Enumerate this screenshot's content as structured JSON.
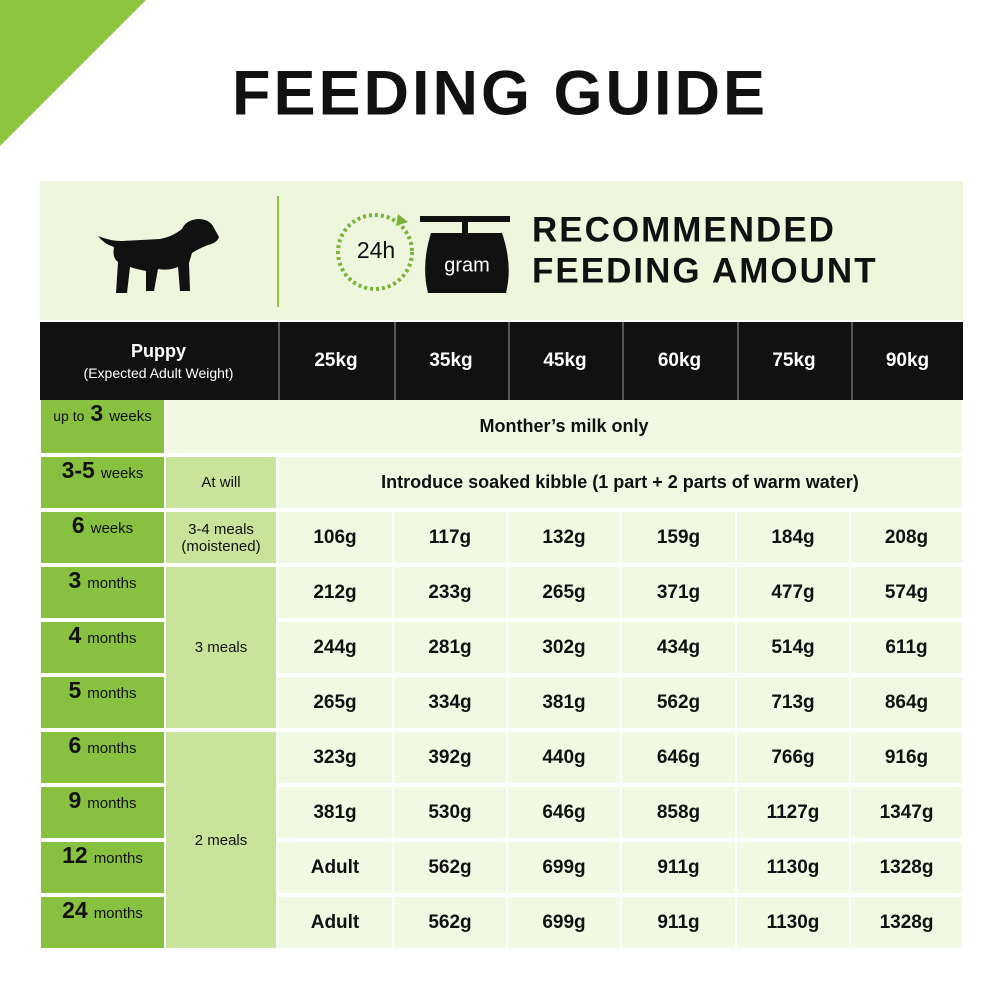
{
  "title": "FEEDING GUIDE",
  "header": {
    "icon_24h": "24h",
    "icon_gram": "gram",
    "heading_line1": "RECOMMENDED",
    "heading_line2": "FEEDING AMOUNT"
  },
  "table": {
    "corner": {
      "label": "Puppy",
      "sublabel": "(Expected Adult Weight)"
    },
    "weights": [
      "25kg",
      "35kg",
      "45kg",
      "60kg",
      "75kg",
      "90kg"
    ],
    "rows": [
      {
        "age": {
          "prefix": "up to",
          "number": "3",
          "unit": "weeks"
        },
        "note": "Monther’s milk only"
      },
      {
        "age": {
          "number": "3-5",
          "unit": "weeks"
        },
        "meals": [
          "At will"
        ],
        "note": "Introduce soaked kibble (1 part + 2 parts of warm water)"
      },
      {
        "age": {
          "number": "6",
          "unit": "weeks"
        },
        "meals": [
          "3-4 meals",
          "(moistened)"
        ],
        "amounts": [
          "106g",
          "117g",
          "132g",
          "159g",
          "184g",
          "208g"
        ]
      },
      {
        "age": {
          "number": "3",
          "unit": "months"
        },
        "meals": [
          "3 meals"
        ],
        "amounts": [
          "212g",
          "233g",
          "265g",
          "371g",
          "477g",
          "574g"
        ]
      },
      {
        "age": {
          "number": "4",
          "unit": "months"
        },
        "amounts": [
          "244g",
          "281g",
          "302g",
          "434g",
          "514g",
          "611g"
        ]
      },
      {
        "age": {
          "number": "5",
          "unit": "months"
        },
        "amounts": [
          "265g",
          "334g",
          "381g",
          "562g",
          "713g",
          "864g"
        ]
      },
      {
        "age": {
          "number": "6",
          "unit": "months"
        },
        "meals": [
          "2 meals"
        ],
        "amounts": [
          "323g",
          "392g",
          "440g",
          "646g",
          "766g",
          "916g"
        ]
      },
      {
        "age": {
          "number": "9",
          "unit": "months"
        },
        "amounts": [
          "381g",
          "530g",
          "646g",
          "858g",
          "1127g",
          "1347g"
        ]
      },
      {
        "age": {
          "number": "12",
          "unit": "months"
        },
        "amounts": [
          "Adult",
          "562g",
          "699g",
          "911g",
          "1130g",
          "1328g"
        ]
      },
      {
        "age": {
          "number": "24",
          "unit": "months"
        },
        "amounts": [
          "Adult",
          "562g",
          "699g",
          "911g",
          "1130g",
          "1328g"
        ]
      }
    ]
  }
}
